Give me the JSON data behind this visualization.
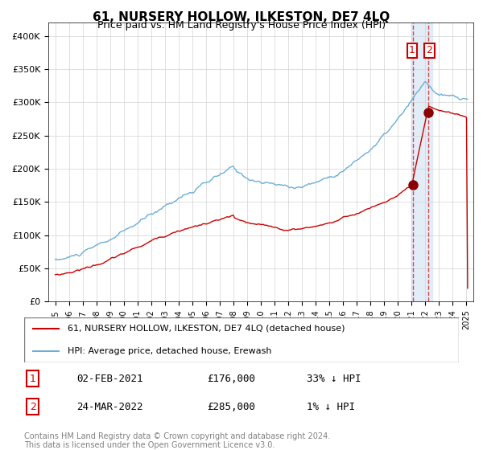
{
  "title": "61, NURSERY HOLLOW, ILKESTON, DE7 4LQ",
  "subtitle": "Price paid vs. HM Land Registry's House Price Index (HPI)",
  "hpi_color": "#6baed6",
  "price_color": "#cc0000",
  "marker_color": "#8b0000",
  "sale1_date_num": 2021.085,
  "sale1_price": 176000,
  "sale1_label": "1",
  "sale2_date_num": 2022.23,
  "sale2_price": 285000,
  "sale2_label": "2",
  "ylabel": "",
  "ylim": [
    0,
    420000
  ],
  "yticks": [
    0,
    50000,
    100000,
    150000,
    200000,
    250000,
    300000,
    350000,
    400000
  ],
  "ytick_labels": [
    "£0",
    "£50K",
    "£100K",
    "£150K",
    "£200K",
    "£250K",
    "£300K",
    "£350K",
    "£400K"
  ],
  "xlim_start": 1994.5,
  "xlim_end": 2025.5,
  "legend1_label": "61, NURSERY HOLLOW, ILKESTON, DE7 4LQ (detached house)",
  "legend2_label": "HPI: Average price, detached house, Erewash",
  "table_row1": [
    "1",
    "02-FEB-2021",
    "£176,000",
    "33% ↓ HPI"
  ],
  "table_row2": [
    "2",
    "24-MAR-2022",
    "£285,000",
    "1% ↓ HPI"
  ],
  "footnote": "Contains HM Land Registry data © Crown copyright and database right 2024.\nThis data is licensed under the Open Government Licence v3.0.",
  "shade_start": 2021.0,
  "shade_end": 2022.5
}
